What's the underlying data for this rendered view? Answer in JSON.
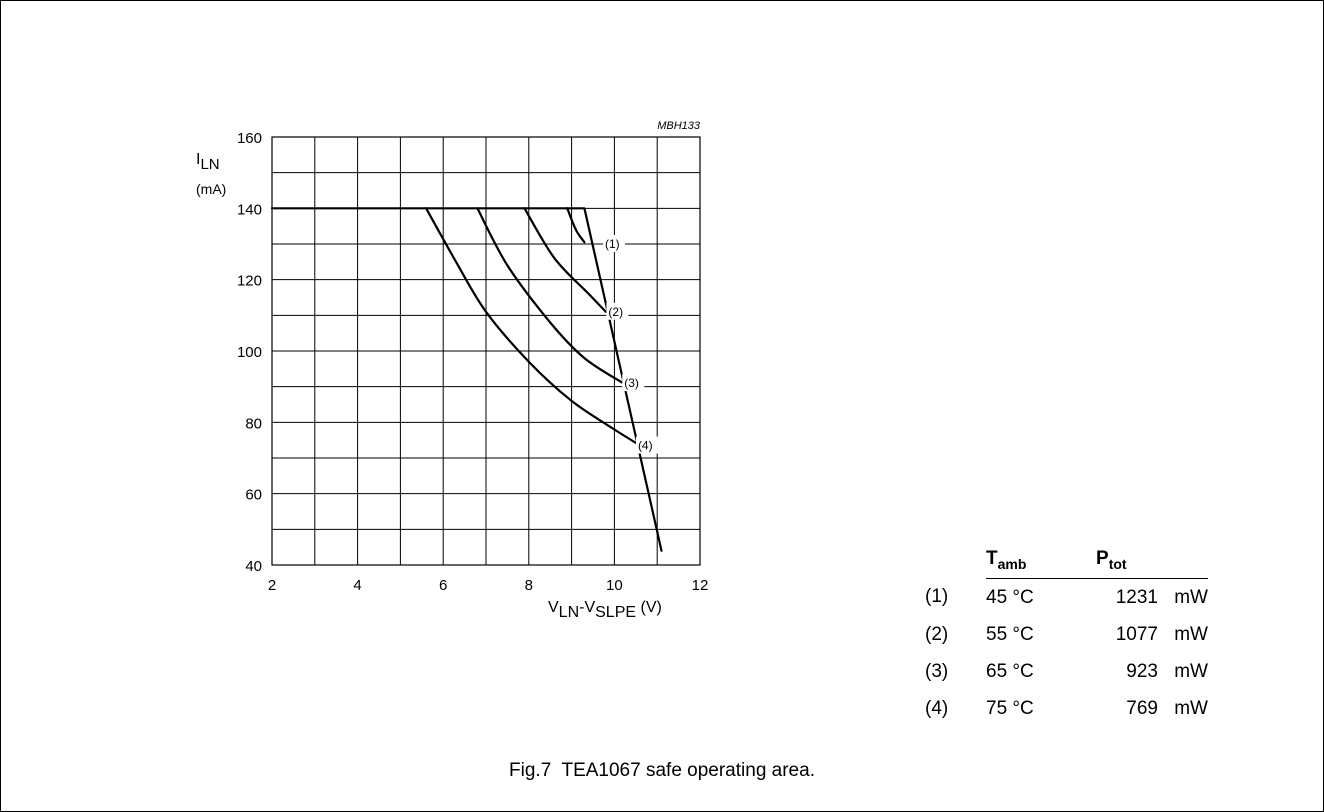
{
  "chart_data": {
    "type": "line",
    "code": "MBH133",
    "ylabel": {
      "main": "I",
      "sub": "LN",
      "unit": "(mA)"
    },
    "xlabel": {
      "v1": "V",
      "s1": "LN",
      "dash": "-",
      "v2": "V",
      "s2": "SLPE",
      "unit": " (V)"
    },
    "xlim": [
      2,
      12
    ],
    "ylim": [
      40,
      160
    ],
    "x_ticks": [
      2,
      4,
      6,
      8,
      10,
      12
    ],
    "y_ticks": [
      40,
      60,
      80,
      100,
      120,
      140,
      160
    ],
    "x_grid_step": 1,
    "y_grid_step": 10,
    "grid": true,
    "series": [
      {
        "id": "limit",
        "points": [
          [
            2,
            140
          ],
          [
            9.3,
            140
          ],
          [
            11.1,
            44
          ]
        ]
      },
      {
        "id": "1",
        "label": "(1)",
        "label_at": [
          9.78,
          130
        ],
        "points": [
          [
            8.9,
            140
          ],
          [
            9.1,
            134
          ],
          [
            9.3,
            130.5
          ]
        ]
      },
      {
        "id": "2",
        "label": "(2)",
        "label_at": [
          9.86,
          111
        ],
        "points": [
          [
            7.9,
            140
          ],
          [
            8.6,
            126
          ],
          [
            9.4,
            116
          ],
          [
            9.8,
            111
          ]
        ]
      },
      {
        "id": "3",
        "label": "(3)",
        "label_at": [
          10.23,
          91
        ],
        "points": [
          [
            6.8,
            140
          ],
          [
            7.5,
            124
          ],
          [
            8.5,
            108
          ],
          [
            9.3,
            98
          ],
          [
            10.2,
            91
          ]
        ]
      },
      {
        "id": "4",
        "label": "(4)",
        "label_at": [
          10.55,
          73.5
        ],
        "points": [
          [
            5.6,
            140
          ],
          [
            6.3,
            125
          ],
          [
            7.0,
            111
          ],
          [
            8.0,
            97
          ],
          [
            9.0,
            86
          ],
          [
            10.0,
            78
          ],
          [
            10.6,
            73.5
          ]
        ]
      }
    ]
  },
  "legend": {
    "header_temp": {
      "main": "T",
      "sub": "amb"
    },
    "header_power": {
      "main": "P",
      "sub": "tot"
    },
    "rows": [
      {
        "key": "(1)",
        "temp": "45 °C",
        "power": "1231",
        "unit": "mW"
      },
      {
        "key": "(2)",
        "temp": "55 °C",
        "power": "1077",
        "unit": "mW"
      },
      {
        "key": "(3)",
        "temp": "65 °C",
        "power": "923",
        "unit": "mW"
      },
      {
        "key": "(4)",
        "temp": "75 °C",
        "power": "769",
        "unit": "mW"
      }
    ]
  },
  "caption": "Fig.7  TEA1067 safe operating area."
}
